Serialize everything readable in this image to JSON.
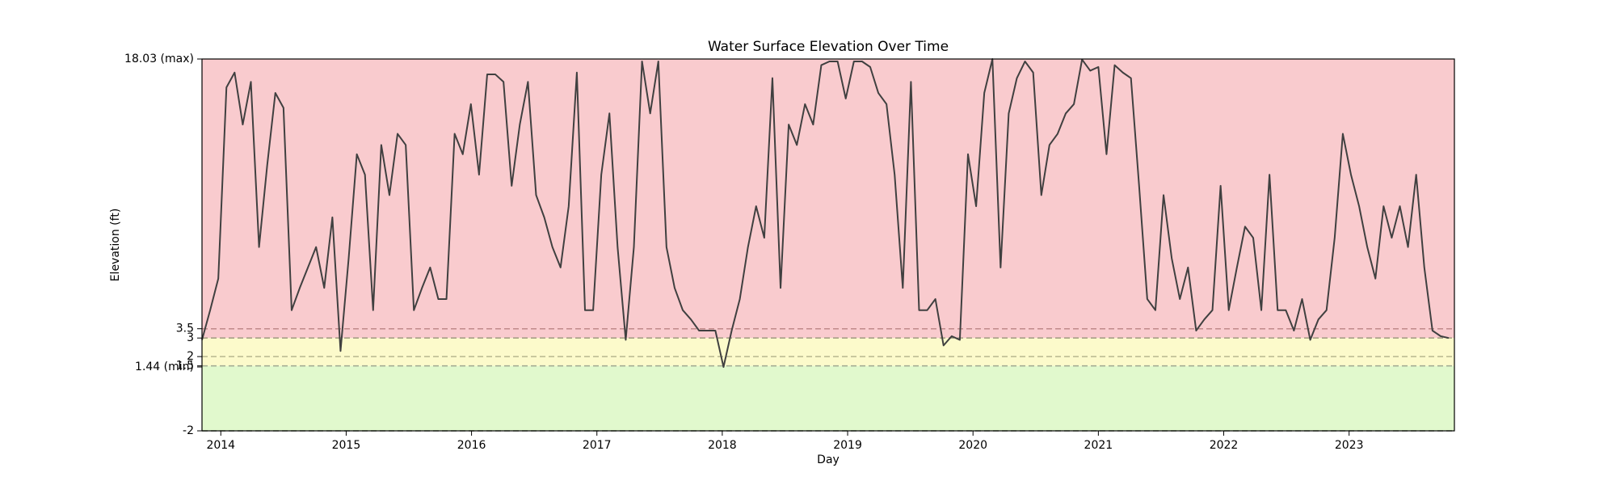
{
  "chart_data": {
    "type": "line",
    "title": "Water Surface Elevation Over Time",
    "x_label": "Day",
    "y_label": "Elevation (ft)",
    "color": "#404040",
    "x": [
      2013.85,
      2013.915,
      2013.98,
      2014.045,
      2014.11,
      2014.175,
      2014.24,
      2014.305,
      2014.37,
      2014.435,
      2014.5,
      2014.565,
      2014.63,
      2014.695,
      2014.76,
      2014.825,
      2014.89,
      2014.955,
      2015.02,
      2015.085,
      2015.15,
      2015.215,
      2015.28,
      2015.345,
      2015.41,
      2015.475,
      2015.54,
      2015.605,
      2015.67,
      2015.735,
      2015.8,
      2015.865,
      2015.93,
      2015.995,
      2016.06,
      2016.125,
      2016.19,
      2016.255,
      2016.32,
      2016.385,
      2016.45,
      2016.515,
      2016.58,
      2016.645,
      2016.71,
      2016.775,
      2016.84,
      2016.905,
      2016.97,
      2017.035,
      2017.1,
      2017.165,
      2017.23,
      2017.295,
      2017.36,
      2017.425,
      2017.49,
      2017.555,
      2017.62,
      2017.685,
      2017.75,
      2017.815,
      2017.88,
      2017.945,
      2018.01,
      2018.075,
      2018.14,
      2018.205,
      2018.27,
      2018.335,
      2018.4,
      2018.465,
      2018.53,
      2018.595,
      2018.66,
      2018.725,
      2018.79,
      2018.855,
      2018.92,
      2018.985,
      2019.05,
      2019.115,
      2019.18,
      2019.245,
      2019.31,
      2019.375,
      2019.44,
      2019.505,
      2019.57,
      2019.635,
      2019.7,
      2019.765,
      2019.83,
      2019.895,
      2019.96,
      2020.025,
      2020.09,
      2020.155,
      2020.22,
      2020.285,
      2020.35,
      2020.415,
      2020.48,
      2020.545,
      2020.61,
      2020.675,
      2020.74,
      2020.805,
      2020.87,
      2020.935,
      2021,
      2021.065,
      2021.13,
      2021.195,
      2021.26,
      2021.325,
      2021.39,
      2021.455,
      2021.52,
      2021.585,
      2021.65,
      2021.715,
      2021.78,
      2021.845,
      2021.91,
      2021.975,
      2022.04,
      2022.105,
      2022.17,
      2022.235,
      2022.3,
      2022.365,
      2022.43,
      2022.495,
      2022.56,
      2022.625,
      2022.69,
      2022.755,
      2022.82,
      2022.885,
      2022.95,
      2023.015,
      2023.08,
      2023.145,
      2023.21,
      2023.275,
      2023.34,
      2023.405,
      2023.47,
      2023.535,
      2023.6,
      2023.665,
      2023.73,
      2023.795
    ],
    "values": [
      2.9,
      4.5,
      6.2,
      16.5,
      17.3,
      14.5,
      16.8,
      7.9,
      12.3,
      16.2,
      15.4,
      4.5,
      5.7,
      6.8,
      7.9,
      5.7,
      9.5,
      2.3,
      7.3,
      12.9,
      11.8,
      4.5,
      13.4,
      10.7,
      14.0,
      13.4,
      4.5,
      5.7,
      6.8,
      5.1,
      5.1,
      14.0,
      12.9,
      15.6,
      11.8,
      17.2,
      17.2,
      16.8,
      11.2,
      14.5,
      16.8,
      10.7,
      9.5,
      7.9,
      6.8,
      10.1,
      17.3,
      4.5,
      4.5,
      11.8,
      15.1,
      7.9,
      2.9,
      7.9,
      17.9,
      15.1,
      17.9,
      7.9,
      5.7,
      4.5,
      4.0,
      3.4,
      3.4,
      3.4,
      1.44,
      3.4,
      5.1,
      7.9,
      10.1,
      8.4,
      17.0,
      5.7,
      14.5,
      13.4,
      15.6,
      14.5,
      17.7,
      17.9,
      17.9,
      15.9,
      17.9,
      17.9,
      17.6,
      16.2,
      15.6,
      11.8,
      5.7,
      16.8,
      4.5,
      4.5,
      5.1,
      2.6,
      3.1,
      2.9,
      12.9,
      10.1,
      16.2,
      18.03,
      6.8,
      15.1,
      17.0,
      17.9,
      17.3,
      10.7,
      13.4,
      14.0,
      15.1,
      15.6,
      18.0,
      17.4,
      17.6,
      12.9,
      17.7,
      17.3,
      17.0,
      11.2,
      5.1,
      4.5,
      10.7,
      7.3,
      5.1,
      6.8,
      3.4,
      4.0,
      4.5,
      11.2,
      4.5,
      6.8,
      9.0,
      8.4,
      4.5,
      11.8,
      4.5,
      4.5,
      3.4,
      5.1,
      2.9,
      4.0,
      4.5,
      8.4,
      14.0,
      11.8,
      10.1,
      7.9,
      6.2,
      10.1,
      8.4,
      10.1,
      7.9,
      11.8,
      6.8,
      3.4,
      3.1,
      3.0
    ],
    "xlim": [
      2013.85,
      2023.84
    ],
    "xticks": [
      2014,
      2015,
      2016,
      2017,
      2018,
      2019,
      2020,
      2021,
      2022,
      2023
    ],
    "ylim": [
      -2,
      18.03
    ],
    "yticks": [
      -2,
      {
        "value": 1.44,
        "label": "1.44 (min)"
      },
      1.5,
      2,
      3,
      3.5,
      {
        "value": 18.03,
        "label": "18.03 (max)"
      }
    ],
    "bands": [
      {
        "from": -2,
        "to": 1.5,
        "color": "#e1f9cd"
      },
      {
        "from": 1.5,
        "to": 3,
        "color": "#fcfacb"
      },
      {
        "from": 3,
        "to": 18.03,
        "color": "#f9cbce"
      }
    ],
    "threshold_lines": [
      {
        "value": 3.5,
        "color": "#c08a8a"
      },
      {
        "value": 3,
        "color": "#a09a80"
      },
      {
        "value": 2,
        "color": "#b8b890"
      },
      {
        "value": 1.5,
        "color": "#a0a890"
      },
      {
        "value": -2,
        "color": "#6a7a60"
      }
    ]
  }
}
